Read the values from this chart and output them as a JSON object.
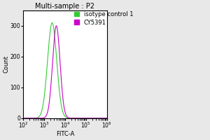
{
  "title": "Multi-sample : P2",
  "xlabel": "FITC-A",
  "ylabel": "Count",
  "xlim_log": [
    2,
    6
  ],
  "ylim": [
    0,
    350
  ],
  "yticks": [
    0,
    100,
    200,
    300
  ],
  "legend": [
    {
      "label": "isotype control 1",
      "color": "#33cc33"
    },
    {
      "label": "CY5391",
      "color": "#cc00cc"
    }
  ],
  "green_peak_log": 3.38,
  "green_peak_count": 310,
  "green_sigma_log": 0.22,
  "magenta_peak_log": 3.58,
  "magenta_peak_count": 300,
  "magenta_sigma_log": 0.18,
  "background_color": "#e8e8e8",
  "plot_bg_color": "#ffffff",
  "title_fontsize": 7,
  "axis_fontsize": 6,
  "tick_fontsize": 5.5,
  "legend_fontsize": 6,
  "figsize": [
    3.0,
    2.0
  ],
  "dpi": 100
}
